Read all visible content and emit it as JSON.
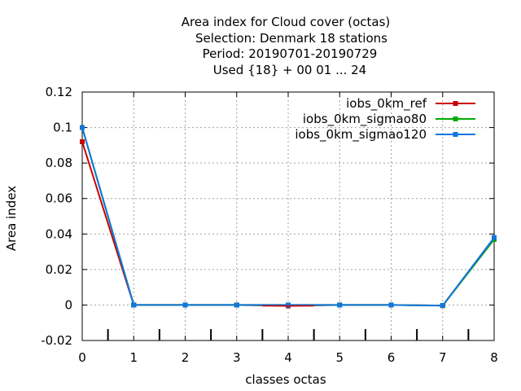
{
  "title_lines": [
    "Area index  for Cloud cover (octas)",
    "Selection: Denmark     18 stations",
    "Period: 20190701-20190729",
    "Used {18} + 00 01 ... 24"
  ],
  "chart_data": {
    "type": "line",
    "title": "Area index  for Cloud cover (octas)",
    "xlabel": "classes octas",
    "ylabel": "Area index",
    "xlim": [
      0,
      8
    ],
    "ylim": [
      -0.02,
      0.12
    ],
    "x_ticks": [
      "0",
      "1",
      "2",
      "3",
      "4",
      "5",
      "6",
      "7",
      "8"
    ],
    "y_ticks": [
      "-0.02",
      "0",
      "0.02",
      "0.04",
      "0.06",
      "0.08",
      "0.1",
      "0.12"
    ],
    "grid": true,
    "legend_position": "top-right",
    "x": [
      0,
      1,
      2,
      3,
      4,
      5,
      6,
      7,
      8
    ],
    "series": [
      {
        "name": "iobs_0km_ref",
        "color": "#cc0000",
        "values": [
          0.092,
          0.0,
          0.0,
          0.0,
          -0.0005,
          0.0,
          0.0,
          -0.0003,
          0.037
        ]
      },
      {
        "name": "iobs_0km_sigmao80",
        "color": "#00aa00",
        "values": [
          0.1,
          0.0,
          0.0,
          0.0,
          0.0,
          0.0,
          0.0,
          -0.0003,
          0.037
        ]
      },
      {
        "name": "iobs_0km_sigmao120",
        "color": "#1177dd",
        "values": [
          0.1,
          0.0,
          0.0,
          0.0,
          0.0,
          0.0,
          0.0,
          -0.0003,
          0.038
        ]
      }
    ]
  }
}
